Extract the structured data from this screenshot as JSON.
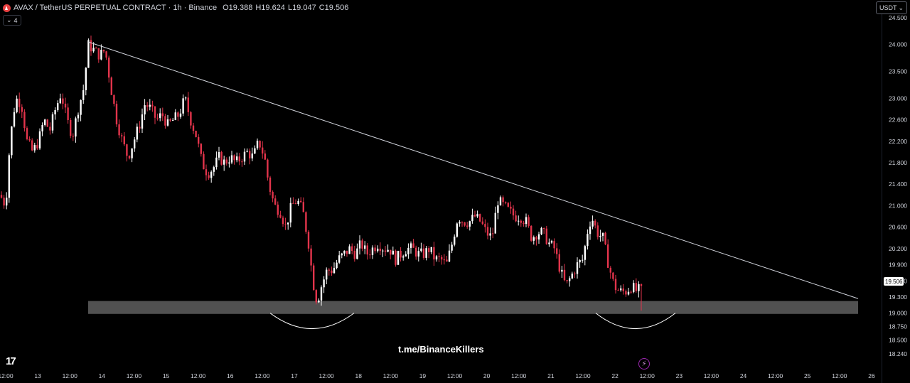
{
  "header": {
    "title": "AVAX / TetherUS PERPETUAL CONTRACT · 1h · Binance",
    "ohlc": [
      {
        "key": "O",
        "value": "19.388"
      },
      {
        "key": "H",
        "value": "19.624"
      },
      {
        "key": "L",
        "value": "19.047"
      },
      {
        "key": "C",
        "value": "19.506"
      }
    ],
    "indicator_count": "4",
    "currency": "USDT"
  },
  "watermark": "t.me/BinanceKillers",
  "colors": {
    "up": "#ffffff",
    "down": "#e2344b",
    "trendline": "#d1d4dc",
    "zone": "#5a5a5a",
    "background": "#000000"
  },
  "chart_data": {
    "type": "candlestick",
    "symbol": "AVAXUSDT.P",
    "interval": "1h",
    "y_range": [
      17.95,
      24.83
    ],
    "price_ticks": [
      "24.500",
      "24.000",
      "23.500",
      "23.000",
      "22.600",
      "22.200",
      "21.800",
      "21.400",
      "21.000",
      "20.600",
      "20.200",
      "19.900",
      "19.600",
      "19.300",
      "19.000",
      "18.750",
      "18.500",
      "18.240"
    ],
    "x_ticks": [
      "12:00",
      "13",
      "12:00",
      "14",
      "12:00",
      "15",
      "12:00",
      "16",
      "12:00",
      "17",
      "12:00",
      "18",
      "12:00",
      "19",
      "12:00",
      "20",
      "12:00",
      "21",
      "12:00",
      "22",
      "12:00",
      "23",
      "12:00",
      "24",
      "12:00",
      "25",
      "12:00",
      "26"
    ],
    "last_price": "19.506",
    "price_path": [
      [
        0,
        21.2
      ],
      [
        8,
        21.0
      ],
      [
        14,
        22.2
      ],
      [
        22,
        23.0
      ],
      [
        30,
        22.9
      ],
      [
        38,
        22.2
      ],
      [
        46,
        22.0
      ],
      [
        54,
        22.2
      ],
      [
        62,
        22.6
      ],
      [
        70,
        22.4
      ],
      [
        78,
        22.8
      ],
      [
        86,
        23.1
      ],
      [
        94,
        22.6
      ],
      [
        102,
        22.3
      ],
      [
        110,
        22.8
      ],
      [
        118,
        23.2
      ],
      [
        124,
        24.0
      ],
      [
        132,
        23.9
      ],
      [
        140,
        23.8
      ],
      [
        148,
        23.9
      ],
      [
        156,
        23.2
      ],
      [
        164,
        22.6
      ],
      [
        172,
        22.2
      ],
      [
        180,
        21.9
      ],
      [
        188,
        22.2
      ],
      [
        196,
        22.5
      ],
      [
        204,
        22.9
      ],
      [
        212,
        22.8
      ],
      [
        220,
        22.6
      ],
      [
        228,
        22.7
      ],
      [
        236,
        22.5
      ],
      [
        244,
        22.6
      ],
      [
        252,
        22.7
      ],
      [
        260,
        23.0
      ],
      [
        268,
        22.6
      ],
      [
        276,
        22.3
      ],
      [
        284,
        21.8
      ],
      [
        292,
        21.6
      ],
      [
        300,
        21.7
      ],
      [
        308,
        21.9
      ],
      [
        316,
        21.8
      ],
      [
        324,
        21.9
      ],
      [
        332,
        21.8
      ],
      [
        340,
        21.9
      ],
      [
        348,
        22.0
      ],
      [
        356,
        21.9
      ],
      [
        364,
        22.2
      ],
      [
        372,
        21.9
      ],
      [
        378,
        21.4
      ],
      [
        386,
        21.0
      ],
      [
        394,
        20.9
      ],
      [
        402,
        20.6
      ],
      [
        410,
        21.0
      ],
      [
        418,
        21.1
      ],
      [
        426,
        20.9
      ],
      [
        434,
        20.3
      ],
      [
        440,
        19.6
      ],
      [
        446,
        19.2
      ],
      [
        452,
        19.5
      ],
      [
        460,
        19.8
      ],
      [
        468,
        19.8
      ],
      [
        476,
        20.0
      ],
      [
        484,
        20.1
      ],
      [
        492,
        20.2
      ],
      [
        500,
        20.1
      ],
      [
        508,
        20.3
      ],
      [
        516,
        20.1
      ],
      [
        524,
        20.2
      ],
      [
        532,
        20.3
      ],
      [
        540,
        20.2
      ],
      [
        548,
        20.2
      ],
      [
        556,
        20.0
      ],
      [
        564,
        20.1
      ],
      [
        572,
        20.2
      ],
      [
        580,
        20.2
      ],
      [
        588,
        20.1
      ],
      [
        596,
        20.1
      ],
      [
        604,
        20.2
      ],
      [
        612,
        20.0
      ],
      [
        620,
        20.0
      ],
      [
        628,
        19.9
      ],
      [
        636,
        20.3
      ],
      [
        644,
        20.8
      ],
      [
        652,
        20.7
      ],
      [
        660,
        20.7
      ],
      [
        668,
        20.8
      ],
      [
        676,
        20.7
      ],
      [
        684,
        20.5
      ],
      [
        692,
        20.4
      ],
      [
        700,
        21.1
      ],
      [
        708,
        21.0
      ],
      [
        716,
        20.9
      ],
      [
        724,
        20.8
      ],
      [
        732,
        20.8
      ],
      [
        740,
        20.7
      ],
      [
        748,
        20.4
      ],
      [
        756,
        20.5
      ],
      [
        764,
        20.5
      ],
      [
        772,
        20.3
      ],
      [
        780,
        20.2
      ],
      [
        788,
        19.8
      ],
      [
        796,
        19.5
      ],
      [
        804,
        19.7
      ],
      [
        812,
        19.9
      ],
      [
        820,
        20.0
      ],
      [
        826,
        20.5
      ],
      [
        832,
        20.8
      ],
      [
        840,
        20.5
      ],
      [
        848,
        20.4
      ],
      [
        856,
        19.9
      ],
      [
        864,
        19.5
      ],
      [
        872,
        19.4
      ],
      [
        880,
        19.4
      ],
      [
        888,
        19.5
      ],
      [
        896,
        19.4
      ],
      [
        904,
        19.5
      ]
    ],
    "trendline": {
      "from": [
        124,
        24.05
      ],
      "to": [
        1207,
        19.27
      ]
    },
    "support_zone": {
      "x_from": 124,
      "x_to": 1207,
      "y_top": 19.225,
      "y_bottom": 18.985
    },
    "arcs": [
      {
        "x_from": 380,
        "x_to": 498,
        "y_edge": 19.0,
        "y_bottom": 18.71
      },
      {
        "x_from": 838,
        "x_to": 950,
        "y_edge": 19.0,
        "y_bottom": 18.71
      }
    ]
  }
}
